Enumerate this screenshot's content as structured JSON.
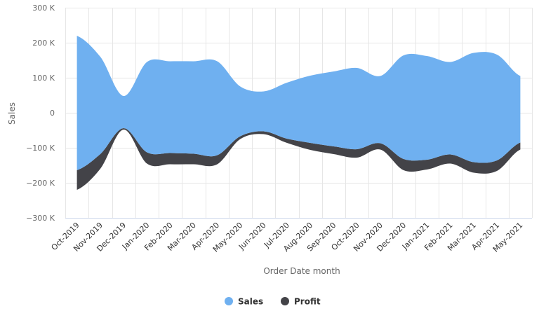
{
  "chart_data": {
    "type": "area",
    "subtype": "streamgraph",
    "title": "",
    "xlabel": "Order Date month",
    "ylabel": "Sales",
    "ylim": [
      -300000,
      300000
    ],
    "yticks": [
      300000,
      200000,
      100000,
      0,
      -100000,
      -200000,
      -300000
    ],
    "ytick_labels": [
      "300 K",
      "200 K",
      "100 K",
      "0",
      "-100 K",
      "-200 K",
      "-300 K"
    ],
    "grid": true,
    "legend_position": "bottom",
    "categories": [
      "Oct-2019",
      "Nov-2019",
      "Dec-2019",
      "Jan-2020",
      "Feb-2020",
      "Mar-2020",
      "Apr-2020",
      "May-2020",
      "Jun-2020",
      "Jul-2020",
      "Aug-2020",
      "Sep-2020",
      "Oct-2020",
      "Nov-2020",
      "Dec-2020",
      "Jan-2021",
      "Feb-2021",
      "Mar-2021",
      "Apr-2021",
      "May-2021"
    ],
    "series": [
      {
        "name": "Sales",
        "color": "#6FB0F0",
        "values": [
          384000,
          278000,
          92000,
          258000,
          262000,
          264000,
          269000,
          142000,
          114000,
          160000,
          192000,
          214000,
          232000,
          192000,
          296000,
          296000,
          264000,
          312000,
          302000,
          190000
        ]
      },
      {
        "name": "Profit",
        "color": "#434348",
        "values": [
          56000,
          42000,
          4000,
          32000,
          32000,
          30000,
          26000,
          8000,
          8000,
          12000,
          20000,
          22000,
          24000,
          18000,
          32000,
          28000,
          26000,
          30000,
          30000,
          20000
        ]
      }
    ]
  },
  "legend": {
    "items": [
      {
        "label": "Sales",
        "color": "#6FB0F0"
      },
      {
        "label": "Profit",
        "color": "#434348"
      }
    ]
  }
}
